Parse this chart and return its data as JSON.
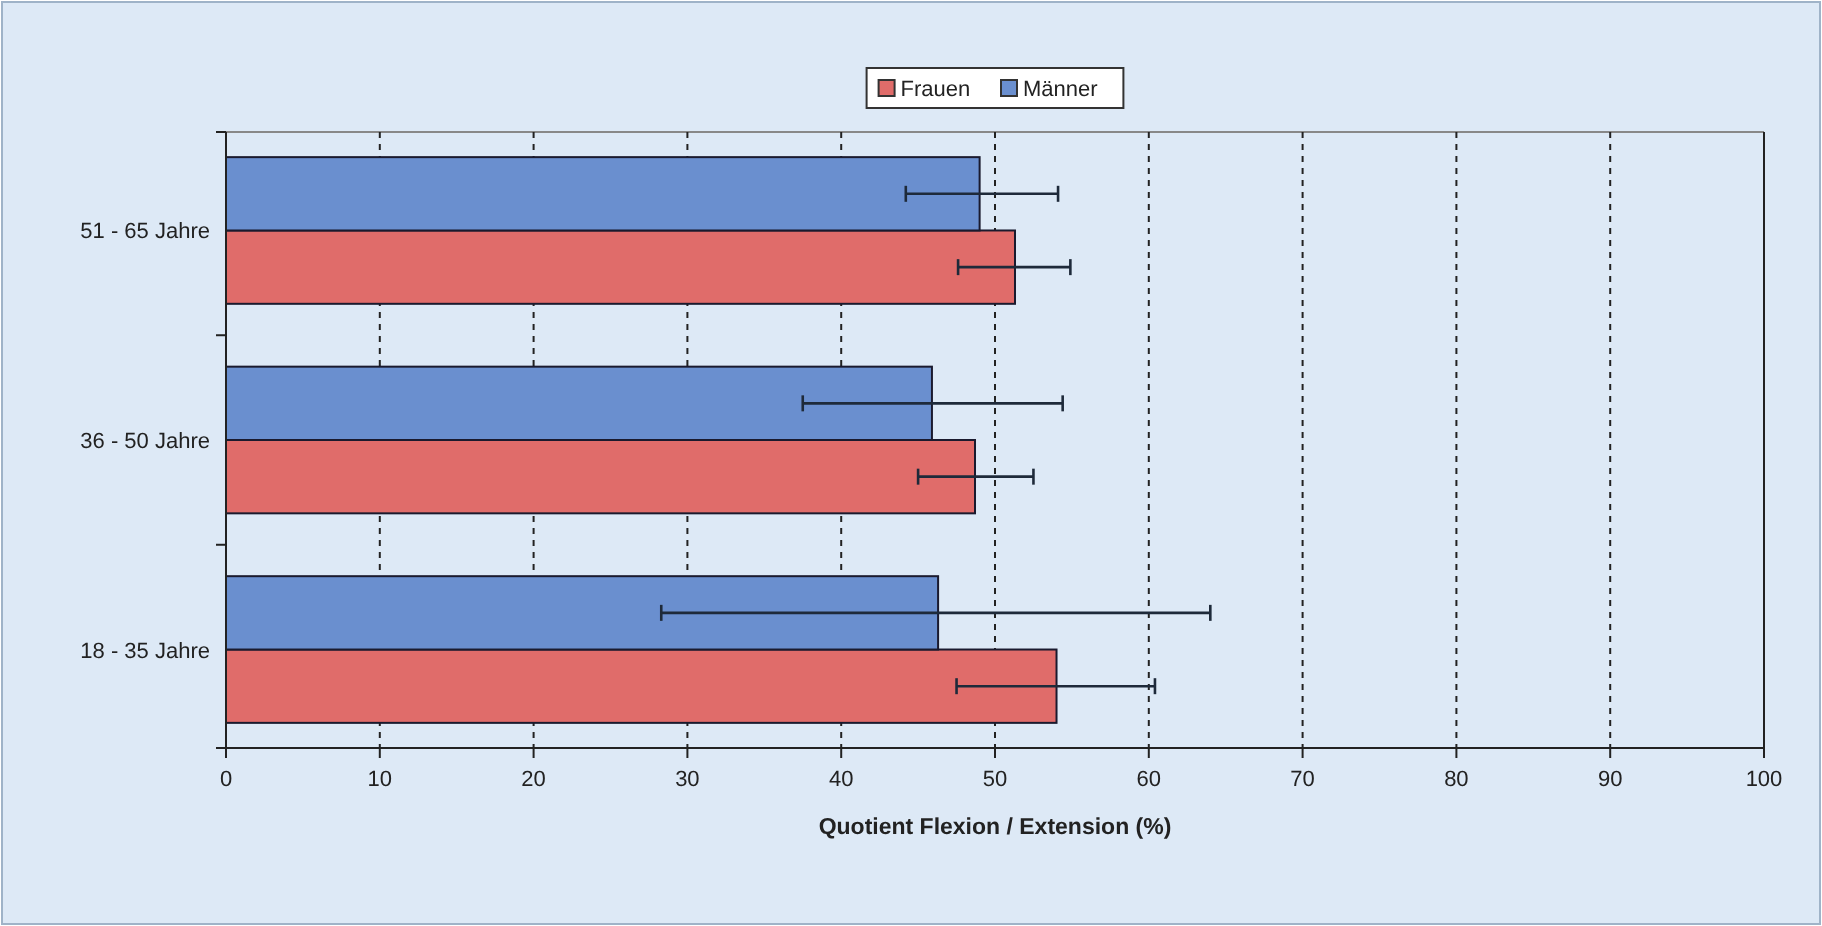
{
  "chart_data": {
    "type": "bar",
    "orientation": "horizontal",
    "xlabel": "Quotient Flexion / Extension (%)",
    "categories": [
      "51 - 65 Jahre",
      "36 - 50 Jahre",
      "18 - 35 Jahre"
    ],
    "series": [
      {
        "name": "Frauen",
        "color": "#e06c6a",
        "values": [
          51.3,
          48.7,
          54.0
        ],
        "errors": [
          [
            47.6,
            54.9
          ],
          [
            45.0,
            52.5
          ],
          [
            47.5,
            60.4
          ]
        ]
      },
      {
        "name": "Männer",
        "color": "#6a8fcf",
        "values": [
          49.0,
          45.9,
          46.3
        ],
        "errors": [
          [
            44.2,
            54.1
          ],
          [
            37.5,
            54.4
          ],
          [
            28.3,
            64.0
          ]
        ]
      }
    ],
    "xlim": [
      0,
      100
    ],
    "xticks": [
      0,
      10,
      20,
      30,
      40,
      50,
      60,
      70,
      80,
      90,
      100
    ],
    "grid": "x",
    "legend": "top"
  }
}
